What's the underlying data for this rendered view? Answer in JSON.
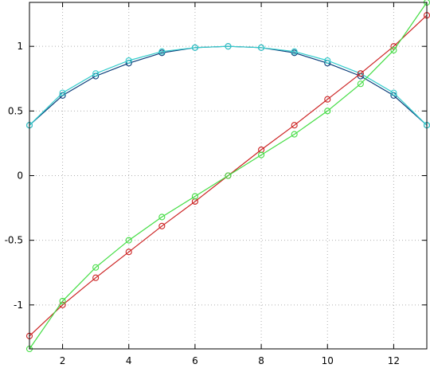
{
  "chart_data": {
    "type": "line",
    "title": "",
    "xlabel": "",
    "ylabel": "",
    "xlim": [
      1,
      13
    ],
    "ylim": [
      -1.34,
      1.34
    ],
    "grid": true,
    "legend": "none",
    "x_ticks": [
      2,
      4,
      6,
      8,
      10,
      12
    ],
    "y_ticks": [
      -1,
      -0.5,
      0,
      0.5,
      1
    ],
    "x_tick_labels": [
      "2",
      "4",
      "6",
      "8",
      "10",
      "12"
    ],
    "y_tick_labels": [
      "-1",
      "-0.5",
      "0",
      "0.5",
      "1"
    ],
    "x": [
      1,
      2,
      3,
      4,
      5,
      6,
      7,
      8,
      9,
      10,
      11,
      12,
      13
    ],
    "series": [
      {
        "color": "#0a3d7a",
        "values": [
          0.39,
          0.62,
          0.77,
          0.87,
          0.95,
          0.99,
          1.0,
          0.99,
          0.95,
          0.87,
          0.77,
          0.62,
          0.39
        ]
      },
      {
        "color": "#33cccc",
        "values": [
          0.39,
          0.64,
          0.79,
          0.89,
          0.96,
          0.99,
          1.0,
          0.99,
          0.96,
          0.89,
          0.79,
          0.64,
          0.39
        ]
      },
      {
        "color": "#cc2222",
        "values": [
          -1.24,
          -1.0,
          -0.79,
          -0.59,
          -0.39,
          -0.2,
          0.0,
          0.2,
          0.39,
          0.59,
          0.79,
          1.0,
          1.24
        ]
      },
      {
        "color": "#44dd44",
        "values": [
          -1.34,
          -0.97,
          -0.71,
          -0.5,
          -0.32,
          -0.16,
          0.0,
          0.16,
          0.32,
          0.5,
          0.71,
          0.97,
          1.34
        ]
      }
    ]
  }
}
